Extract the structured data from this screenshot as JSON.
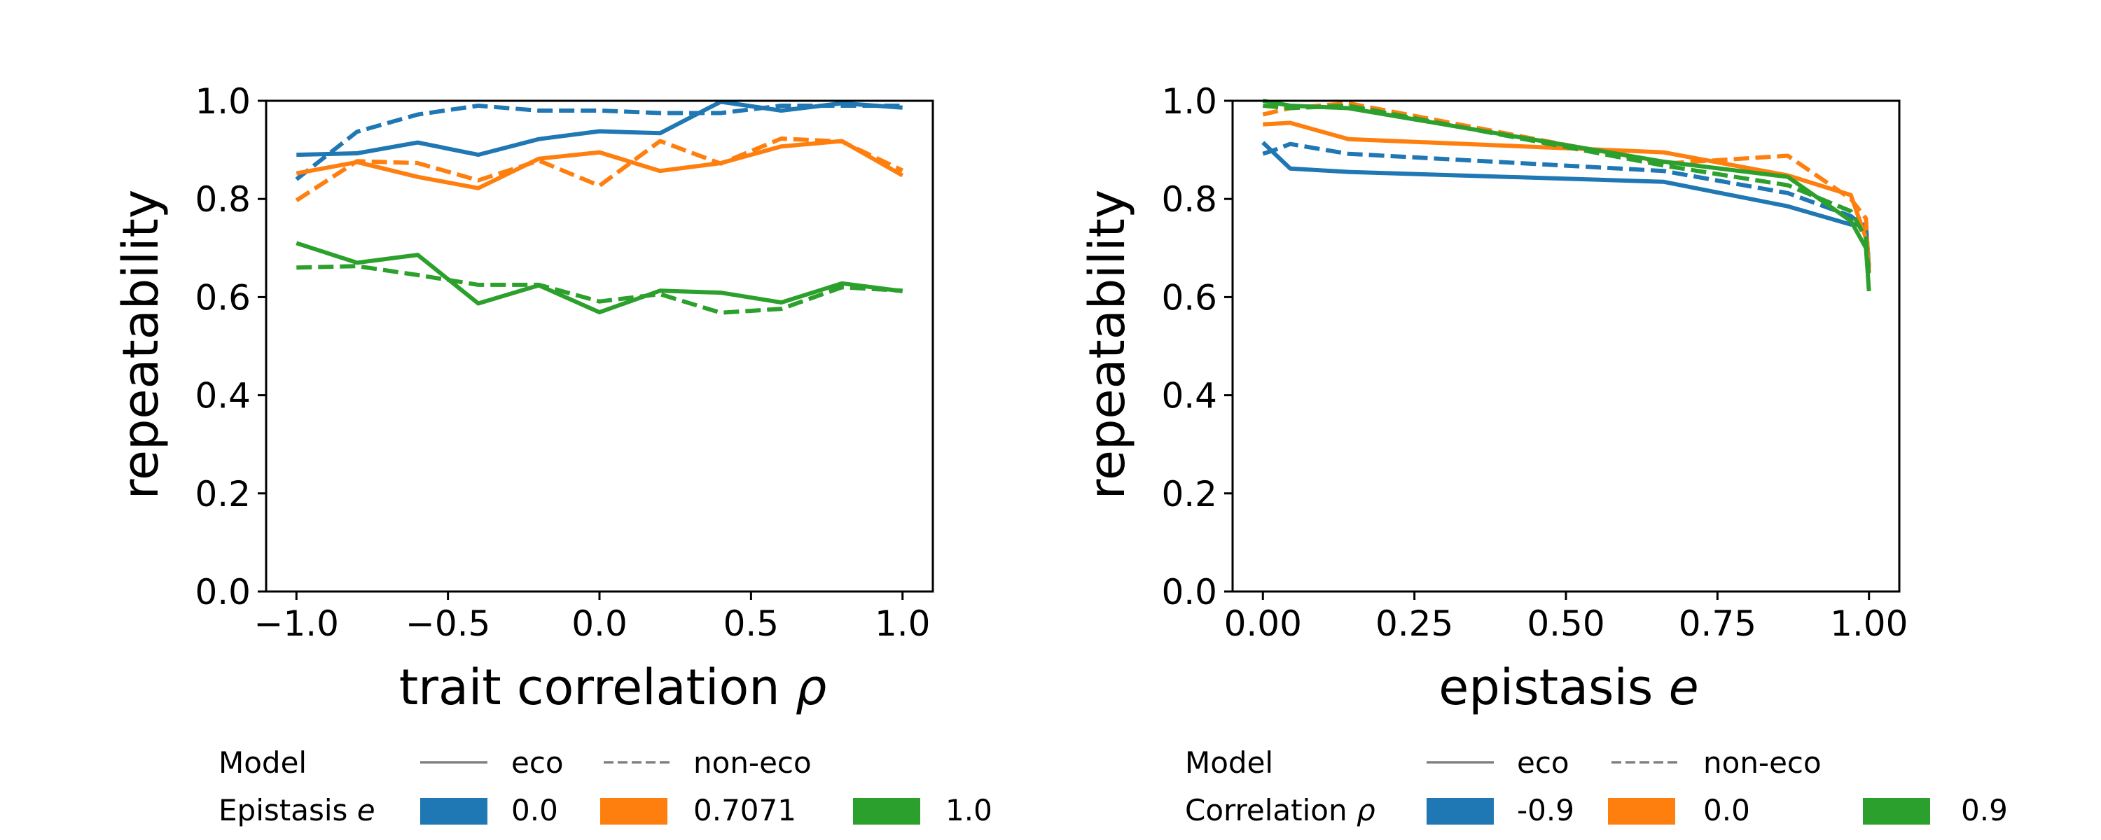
{
  "figure": {
    "legend_header_model": "Model",
    "legend_model_eco": "eco",
    "legend_model_noneco": "non-eco",
    "line_colors": {
      "blue": "#1f77b4",
      "orange": "#ff7f0e",
      "green": "#2ca02c"
    },
    "legend_key_color": "#808080"
  },
  "chart_data": [
    {
      "type": "line",
      "title": "",
      "xlabel": "trait correlation ρ",
      "xlabel_text": "trait correlation ",
      "xlabel_symbol": "ρ",
      "ylabel": "repeatability",
      "xlim": [
        -1.1,
        1.1
      ],
      "ylim": [
        0.0,
        1.0
      ],
      "xticks": [
        -1.0,
        -0.5,
        0.0,
        0.5,
        1.0
      ],
      "xtick_labels": [
        "−1.0",
        "−0.5",
        "0.0",
        "0.5",
        "1.0"
      ],
      "yticks": [
        0.0,
        0.2,
        0.4,
        0.6,
        0.8,
        1.0
      ],
      "ytick_labels": [
        "0.0",
        "0.2",
        "0.4",
        "0.6",
        "0.8",
        "1.0"
      ],
      "grid": false,
      "legend_position": "bottom",
      "legend_group_title": "Epistasis e",
      "legend_group_title_text": "Epistasis ",
      "legend_group_title_symbol": "e",
      "series": [
        {
          "name": "0.0",
          "model": "eco",
          "color": "#1f77b4",
          "x": [
            -1.0,
            -0.8,
            -0.6,
            -0.4,
            -0.2,
            0.0,
            0.2,
            0.4,
            0.6,
            0.8,
            1.0
          ],
          "y": [
            0.89,
            0.893,
            0.915,
            0.89,
            0.922,
            0.938,
            0.934,
            0.998,
            0.98,
            0.995,
            0.986
          ]
        },
        {
          "name": "0.0",
          "model": "non-eco",
          "color": "#1f77b4",
          "x": [
            -1.0,
            -0.8,
            -0.6,
            -0.4,
            -0.2,
            0.0,
            0.2,
            0.4,
            0.6,
            0.8,
            1.0
          ],
          "y": [
            0.84,
            0.937,
            0.972,
            0.99,
            0.98,
            0.98,
            0.975,
            0.975,
            0.99,
            0.99,
            0.99
          ]
        },
        {
          "name": "0.7071",
          "model": "eco",
          "color": "#ff7f0e",
          "x": [
            -1.0,
            -0.8,
            -0.6,
            -0.4,
            -0.2,
            0.0,
            0.2,
            0.4,
            0.6,
            0.8,
            1.0
          ],
          "y": [
            0.852,
            0.875,
            0.845,
            0.822,
            0.882,
            0.895,
            0.857,
            0.873,
            0.907,
            0.918,
            0.848
          ]
        },
        {
          "name": "0.7071",
          "model": "non-eco",
          "color": "#ff7f0e",
          "x": [
            -1.0,
            -0.8,
            -0.6,
            -0.4,
            -0.2,
            0.0,
            0.2,
            0.4,
            0.6,
            0.8,
            1.0
          ],
          "y": [
            0.797,
            0.877,
            0.873,
            0.838,
            0.878,
            0.827,
            0.918,
            0.872,
            0.923,
            0.917,
            0.858
          ]
        },
        {
          "name": "1.0",
          "model": "eco",
          "color": "#2ca02c",
          "x": [
            -1.0,
            -0.8,
            -0.6,
            -0.4,
            -0.2,
            0.0,
            0.2,
            0.4,
            0.6,
            0.8,
            1.0
          ],
          "y": [
            0.71,
            0.67,
            0.686,
            0.587,
            0.624,
            0.569,
            0.613,
            0.609,
            0.589,
            0.628,
            0.612
          ]
        },
        {
          "name": "1.0",
          "model": "non-eco",
          "color": "#2ca02c",
          "x": [
            -1.0,
            -0.8,
            -0.6,
            -0.4,
            -0.2,
            0.0,
            0.2,
            0.4,
            0.6,
            0.8,
            1.0
          ],
          "y": [
            0.66,
            0.663,
            0.645,
            0.625,
            0.625,
            0.591,
            0.606,
            0.568,
            0.576,
            0.62,
            0.613
          ]
        }
      ]
    },
    {
      "type": "line",
      "title": "",
      "xlabel": "epistasis e",
      "xlabel_text": "epistasis ",
      "xlabel_symbol": "e",
      "ylabel": "repeatability",
      "xlim": [
        -0.05,
        1.05
      ],
      "ylim": [
        0.0,
        1.0
      ],
      "xticks": [
        0.0,
        0.25,
        0.5,
        0.75,
        1.0
      ],
      "xtick_labels": [
        "0.00",
        "0.25",
        "0.50",
        "0.75",
        "1.00"
      ],
      "yticks": [
        0.0,
        0.2,
        0.4,
        0.6,
        0.8,
        1.0
      ],
      "ytick_labels": [
        "0.0",
        "0.2",
        "0.4",
        "0.6",
        "0.8",
        "1.0"
      ],
      "grid": false,
      "legend_position": "bottom",
      "legend_group_title": "Correlation ρ",
      "legend_group_title_text": "Correlation ",
      "legend_group_title_symbol": "ρ",
      "series": [
        {
          "name": "-0.9",
          "model": "eco",
          "color": "#1f77b4",
          "x": [
            0.0,
            0.045,
            0.141,
            0.661,
            0.866,
            0.97,
            0.995,
            1.0
          ],
          "y": [
            0.915,
            0.862,
            0.855,
            0.835,
            0.785,
            0.748,
            0.748,
            0.66
          ]
        },
        {
          "name": "-0.9",
          "model": "non-eco",
          "color": "#1f77b4",
          "x": [
            0.0,
            0.02,
            0.045,
            0.141,
            0.661,
            0.866,
            0.97,
            0.995,
            1.0
          ],
          "y": [
            0.892,
            0.9,
            0.912,
            0.892,
            0.857,
            0.812,
            0.765,
            0.74,
            0.665
          ]
        },
        {
          "name": "0.0",
          "model": "eco",
          "color": "#ff7f0e",
          "x": [
            0.0,
            0.045,
            0.141,
            0.661,
            0.866,
            0.97,
            0.995,
            1.0
          ],
          "y": [
            0.952,
            0.955,
            0.922,
            0.895,
            0.848,
            0.808,
            0.72,
            0.66
          ]
        },
        {
          "name": "0.0",
          "model": "non-eco",
          "color": "#ff7f0e",
          "x": [
            0.0,
            0.045,
            0.141,
            0.661,
            0.866,
            0.97,
            0.995,
            1.0
          ],
          "y": [
            0.972,
            0.985,
            0.995,
            0.872,
            0.888,
            0.8,
            0.76,
            0.65
          ]
        },
        {
          "name": "0.9",
          "model": "eco",
          "color": "#2ca02c",
          "x": [
            0.0,
            0.045,
            0.141,
            0.661,
            0.866,
            0.97,
            0.995,
            1.0
          ],
          "y": [
            1.0,
            0.99,
            0.985,
            0.876,
            0.845,
            0.755,
            0.7,
            0.612
          ]
        },
        {
          "name": "0.9",
          "model": "non-eco",
          "color": "#2ca02c",
          "x": [
            0.0,
            0.045,
            0.141,
            0.661,
            0.866,
            0.97,
            0.995,
            1.0
          ],
          "y": [
            0.99,
            0.985,
            0.99,
            0.868,
            0.828,
            0.775,
            0.72,
            0.64
          ]
        }
      ]
    }
  ]
}
